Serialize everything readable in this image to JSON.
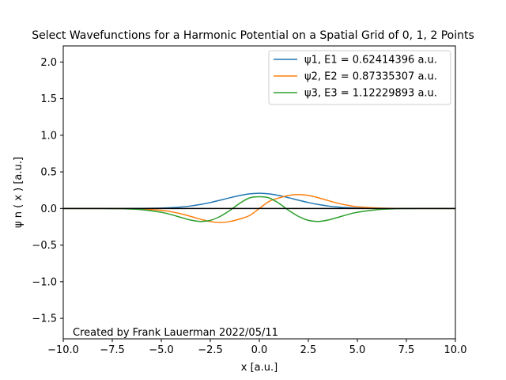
{
  "chart_data": {
    "type": "line",
    "title": "Select Wavefunctions for a Harmonic Potential on a Spatial Grid of 0, 1, 2 Points",
    "xlabel": "x [a.u.]",
    "ylabel": "ψ n ( x ) [a.u.]",
    "xlim": [
      -10,
      10
    ],
    "ylim": [
      -1.78,
      2.22
    ],
    "xticks": [
      -10,
      -7.5,
      -5,
      -2.5,
      0,
      2.5,
      5,
      7.5,
      10
    ],
    "xtick_labels": [
      "−10.0",
      "−7.5",
      "−5.0",
      "−2.5",
      "0.0",
      "2.5",
      "5.0",
      "7.5",
      "10.0"
    ],
    "yticks": [
      -1.5,
      -1.0,
      -0.5,
      0.0,
      0.5,
      1.0,
      1.5,
      2.0
    ],
    "ytick_labels": [
      "−1.5",
      "−1.0",
      "−0.5",
      "0.0",
      "0.5",
      "1.0",
      "1.5",
      "2.0"
    ],
    "grid": false,
    "legend_position": "upper right",
    "annotation": "Created by Frank Lauerman 2022/05/11",
    "baseline": {
      "y": 0,
      "color": "#000000"
    },
    "series": [
      {
        "name": "ψ1, E1 = 0.62414396 a.u.",
        "color": "#1f77b4",
        "x": [
          -10,
          -9,
          -8,
          -7,
          -6,
          -5,
          -4.5,
          -4,
          -3.5,
          -3,
          -2.5,
          -2,
          -1.5,
          -1,
          -0.5,
          0,
          0.5,
          1,
          1.5,
          2,
          2.5,
          3,
          3.5,
          4,
          4.5,
          5,
          6,
          7,
          8,
          9,
          10
        ],
        "y": [
          0.0,
          0.0,
          0.0,
          0.0002,
          0.0012,
          0.0055,
          0.0108,
          0.0199,
          0.0342,
          0.0548,
          0.0816,
          0.1132,
          0.1465,
          0.1768,
          0.1991,
          0.2073,
          0.1991,
          0.1768,
          0.1465,
          0.1132,
          0.0816,
          0.0548,
          0.0342,
          0.0199,
          0.0108,
          0.0055,
          0.0012,
          0.0002,
          0.0,
          0.0,
          0.0
        ]
      },
      {
        "name": "ψ2, E2 = 0.87335307 a.u.",
        "color": "#ff7f0e",
        "x": [
          -10,
          -9,
          -8,
          -7,
          -6,
          -5,
          -4.5,
          -4,
          -3.5,
          -3,
          -2.5,
          -2,
          -1.5,
          -1,
          -0.5,
          0,
          0.5,
          1,
          1.5,
          2,
          2.5,
          3,
          3.5,
          4,
          4.5,
          5,
          6,
          7,
          8,
          9,
          10
        ],
        "y": [
          0.0,
          0.0,
          -0.0001,
          -0.0011,
          -0.0066,
          -0.0248,
          -0.0441,
          -0.0722,
          -0.1085,
          -0.1473,
          -0.178,
          -0.19,
          -0.1779,
          -0.1437,
          -0.0962,
          0.0,
          0.0962,
          0.1437,
          0.1779,
          0.19,
          0.178,
          0.1473,
          0.1085,
          0.0722,
          0.0441,
          0.0248,
          0.0066,
          0.0011,
          0.0001,
          0.0,
          0.0
        ]
      },
      {
        "name": "ψ3, E3 = 1.12229893 a.u.",
        "color": "#2ca02c",
        "x": [
          -10,
          -9,
          -8,
          -7,
          -6,
          -5,
          -4.5,
          -4,
          -3.5,
          -3,
          -2.5,
          -2,
          -1.5,
          -1,
          -0.5,
          0,
          0.5,
          1,
          1.5,
          2,
          2.5,
          3,
          3.5,
          4,
          4.5,
          5,
          6,
          7,
          8,
          9,
          10
        ],
        "y": [
          0.0,
          -0.0001,
          -0.0007,
          -0.0036,
          -0.0163,
          -0.052,
          -0.0836,
          -0.1221,
          -0.1582,
          -0.1773,
          -0.1624,
          -0.1082,
          -0.0259,
          0.0707,
          0.1443,
          0.16,
          0.1443,
          0.0707,
          -0.0259,
          -0.1082,
          -0.1624,
          -0.1773,
          -0.1582,
          -0.1221,
          -0.0836,
          -0.052,
          -0.0163,
          -0.0036,
          -0.0007,
          -0.0001,
          0.0
        ]
      }
    ]
  }
}
